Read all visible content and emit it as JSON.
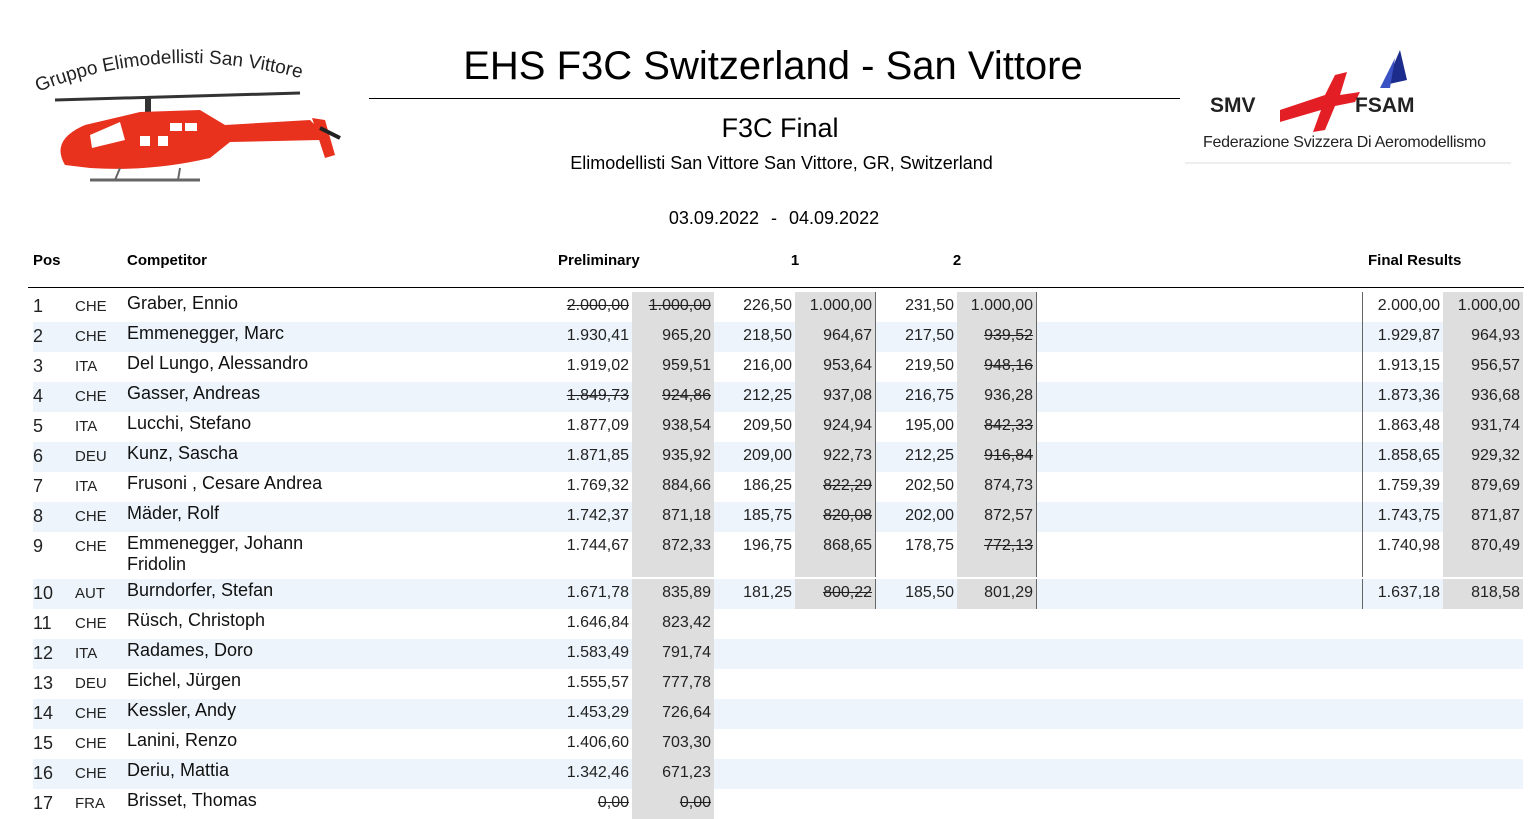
{
  "header": {
    "title": "EHS F3C Switzerland - San Vittore",
    "subtitle": "F3C Final",
    "location": "Elimodellisti San Vittore San Vittore, GR, Switzerland",
    "date_from": "03.09.2022",
    "date_separator": "-",
    "date_to": "04.09.2022"
  },
  "logos": {
    "left": "Gruppo Elimodellisti San Vittore",
    "right_left": "SMV",
    "right_right": "FSAM",
    "right_caption": "Federazione Svizzera Di Aeromodellismo"
  },
  "table": {
    "columns": {
      "pos": "Pos",
      "competitor": "Competitor",
      "prelim": "Preliminary",
      "r1": "1",
      "r2": "2",
      "final": "Final Results"
    },
    "rows": [
      {
        "pos": 1,
        "nation": "CHE",
        "name": "Graber, Ennio",
        "prelim": [
          "2.000,00",
          "1.000,00"
        ],
        "r1": [
          "226,50",
          "1.000,00"
        ],
        "r2": [
          "231,50",
          "1.000,00"
        ],
        "final": [
          "2.000,00",
          "1.000,00"
        ],
        "struck": [
          "prelim.0",
          "prelim.1"
        ]
      },
      {
        "pos": 2,
        "nation": "CHE",
        "name": "Emmenegger, Marc",
        "prelim": [
          "1.930,41",
          "965,20"
        ],
        "r1": [
          "218,50",
          "964,67"
        ],
        "r2": [
          "217,50",
          "939,52"
        ],
        "final": [
          "1.929,87",
          "964,93"
        ],
        "struck": [
          "r2.1"
        ]
      },
      {
        "pos": 3,
        "nation": "ITA",
        "name": "Del Lungo, Alessandro",
        "prelim": [
          "1.919,02",
          "959,51"
        ],
        "r1": [
          "216,00",
          "953,64"
        ],
        "r2": [
          "219,50",
          "948,16"
        ],
        "final": [
          "1.913,15",
          "956,57"
        ],
        "struck": [
          "r2.1"
        ]
      },
      {
        "pos": 4,
        "nation": "CHE",
        "name": "Gasser, Andreas",
        "prelim": [
          "1.849,73",
          "924,86"
        ],
        "r1": [
          "212,25",
          "937,08"
        ],
        "r2": [
          "216,75",
          "936,28"
        ],
        "final": [
          "1.873,36",
          "936,68"
        ],
        "struck": [
          "prelim.0",
          "prelim.1"
        ]
      },
      {
        "pos": 5,
        "nation": "ITA",
        "name": "Lucchi, Stefano",
        "prelim": [
          "1.877,09",
          "938,54"
        ],
        "r1": [
          "209,50",
          "924,94"
        ],
        "r2": [
          "195,00",
          "842,33"
        ],
        "final": [
          "1.863,48",
          "931,74"
        ],
        "struck": [
          "r2.1"
        ]
      },
      {
        "pos": 6,
        "nation": "DEU",
        "name": "Kunz, Sascha",
        "prelim": [
          "1.871,85",
          "935,92"
        ],
        "r1": [
          "209,00",
          "922,73"
        ],
        "r2": [
          "212,25",
          "916,84"
        ],
        "final": [
          "1.858,65",
          "929,32"
        ],
        "struck": [
          "r2.1"
        ]
      },
      {
        "pos": 7,
        "nation": "ITA",
        "name": "Frusoni , Cesare Andrea",
        "prelim": [
          "1.769,32",
          "884,66"
        ],
        "r1": [
          "186,25",
          "822,29"
        ],
        "r2": [
          "202,50",
          "874,73"
        ],
        "final": [
          "1.759,39",
          "879,69"
        ],
        "struck": [
          "r1.1"
        ]
      },
      {
        "pos": 8,
        "nation": "CHE",
        "name": "Mäder, Rolf",
        "prelim": [
          "1.742,37",
          "871,18"
        ],
        "r1": [
          "185,75",
          "820,08"
        ],
        "r2": [
          "202,00",
          "872,57"
        ],
        "final": [
          "1.743,75",
          "871,87"
        ],
        "struck": [
          "r1.1"
        ]
      },
      {
        "pos": 9,
        "nation": "CHE",
        "name": "Emmenegger, Johann Fridolin",
        "prelim": [
          "1.744,67",
          "872,33"
        ],
        "r1": [
          "196,75",
          "868,65"
        ],
        "r2": [
          "178,75",
          "772,13"
        ],
        "final": [
          "1.740,98",
          "870,49"
        ],
        "struck": [
          "r2.1"
        ]
      },
      {
        "pos": 10,
        "nation": "AUT",
        "name": "Burndorfer, Stefan",
        "prelim": [
          "1.671,78",
          "835,89"
        ],
        "r1": [
          "181,25",
          "800,22"
        ],
        "r2": [
          "185,50",
          "801,29"
        ],
        "final": [
          "1.637,18",
          "818,58"
        ],
        "struck": [
          "r1.1"
        ]
      },
      {
        "pos": 11,
        "nation": "CHE",
        "name": "Rüsch, Christoph",
        "prelim": [
          "1.646,84",
          "823,42"
        ]
      },
      {
        "pos": 12,
        "nation": "ITA",
        "name": "Radames, Doro",
        "prelim": [
          "1.583,49",
          "791,74"
        ]
      },
      {
        "pos": 13,
        "nation": "DEU",
        "name": "Eichel, Jürgen",
        "prelim": [
          "1.555,57",
          "777,78"
        ]
      },
      {
        "pos": 14,
        "nation": "CHE",
        "name": "Kessler, Andy",
        "prelim": [
          "1.453,29",
          "726,64"
        ]
      },
      {
        "pos": 15,
        "nation": "CHE",
        "name": "Lanini, Renzo",
        "prelim": [
          "1.406,60",
          "703,30"
        ]
      },
      {
        "pos": 16,
        "nation": "CHE",
        "name": "Deriu, Mattia",
        "prelim": [
          "1.342,46",
          "671,23"
        ]
      },
      {
        "pos": 17,
        "nation": "FRA",
        "name": "Brisset, Thomas",
        "prelim": [
          "0,00",
          "0,00"
        ],
        "struck": [
          "prelim.0",
          "prelim.1"
        ]
      }
    ]
  }
}
